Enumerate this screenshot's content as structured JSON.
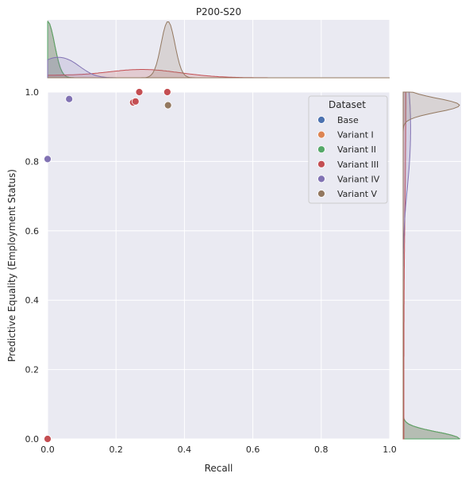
{
  "chart_data": {
    "type": "scatter",
    "title": "P200-S20",
    "xlabel": "Recall",
    "ylabel": "Predictive Equality (Employment Status)",
    "xlim": [
      0,
      1
    ],
    "ylim": [
      0,
      1
    ],
    "xticks": [
      "0.0",
      "0.2",
      "0.4",
      "0.6",
      "0.8",
      "1.0"
    ],
    "yticks": [
      "0.0",
      "0.2",
      "0.4",
      "0.6",
      "0.8",
      "1.0"
    ],
    "grid": true,
    "marginals": "kde",
    "legend": {
      "title": "Dataset",
      "placement": "top-right"
    },
    "series": [
      {
        "name": "Base",
        "color": "#4c72b0",
        "points": [
          [
            0.0,
            0.0
          ]
        ]
      },
      {
        "name": "Variant I",
        "color": "#dd8452",
        "points": [
          [
            0.0,
            0.0
          ]
        ]
      },
      {
        "name": "Variant II",
        "color": "#55a868",
        "points": [
          [
            0.0,
            0.0
          ]
        ]
      },
      {
        "name": "Variant III",
        "color": "#c44e52",
        "points": [
          [
            0.0,
            0.0
          ],
          [
            0.25,
            0.97
          ],
          [
            0.257,
            0.973
          ],
          [
            0.268,
            1.0
          ],
          [
            0.35,
            1.0
          ]
        ]
      },
      {
        "name": "Variant IV",
        "color": "#8172b3",
        "points": [
          [
            0.0,
            0.807
          ],
          [
            0.063,
            0.98
          ]
        ]
      },
      {
        "name": "Variant V",
        "color": "#937860",
        "points": [
          [
            0.352,
            0.962
          ]
        ]
      }
    ]
  }
}
